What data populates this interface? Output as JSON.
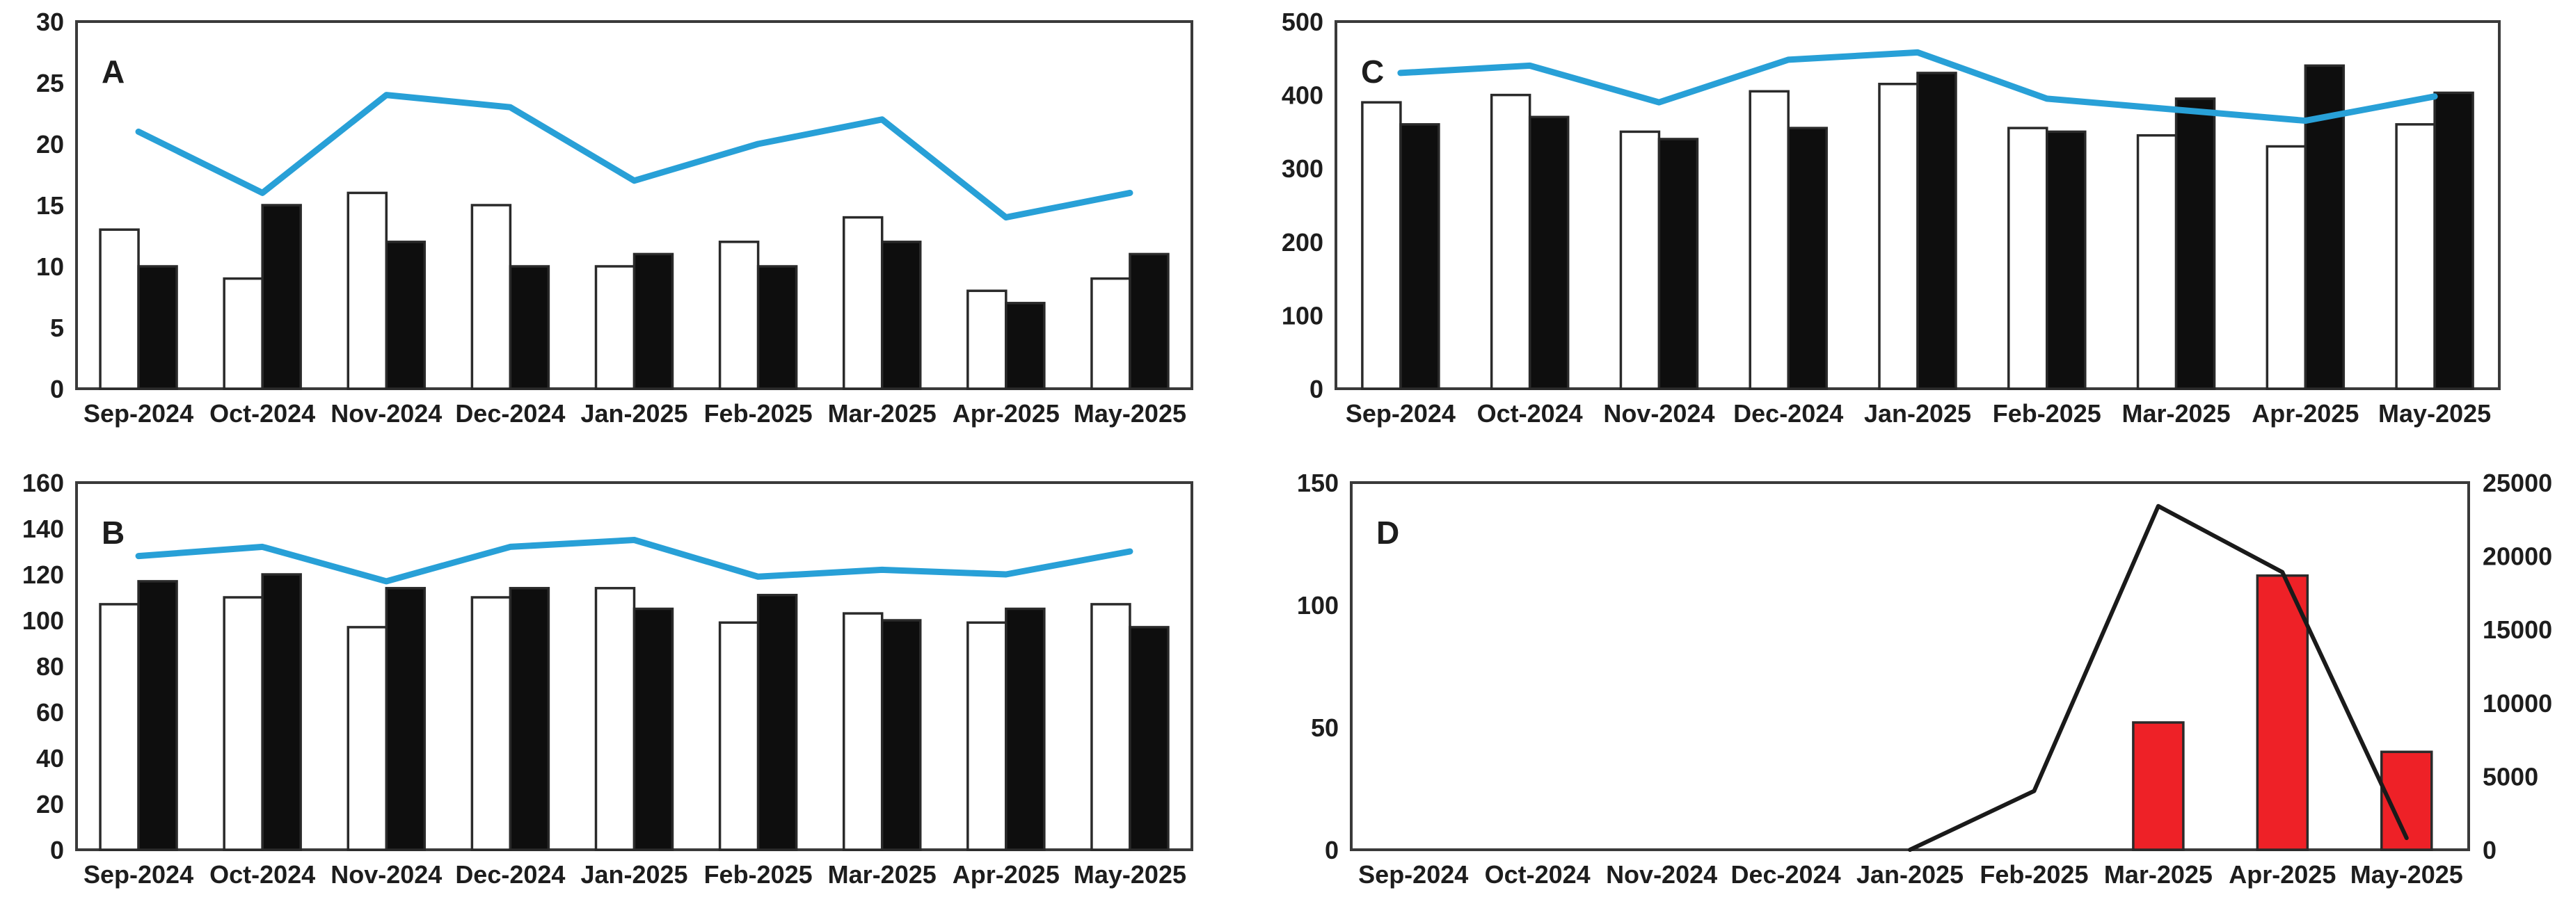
{
  "page": {
    "background": "#ffffff",
    "description": "Four-panel combo chart figure, panels A-D, monthly data Sep-2024 to May-2025"
  },
  "colors": {
    "frame": "#3a3a3a",
    "tick_text": "#1d1d1d",
    "white_bar_fill": "#ffffff",
    "black_bar_fill": "#0e0e0e",
    "bar_outline": "#2a2a2a",
    "blue_line": "#28a0d7",
    "red_bar_fill": "#ee2127",
    "black_line": "#1a1a1a"
  },
  "chart_data": [
    {
      "id": "A",
      "panel_label": "A",
      "type": "bar",
      "subtype": "grouped-bars-with-line-overlay",
      "categories": [
        "Sep-2024",
        "Oct-2024",
        "Nov-2024",
        "Dec-2024",
        "Jan-2025",
        "Feb-2025",
        "Mar-2025",
        "Apr-2025",
        "May-2025"
      ],
      "series": [
        {
          "name": "white-bars",
          "kind": "bar",
          "color": "#ffffff",
          "values": [
            13,
            9,
            16,
            15,
            10,
            12,
            14,
            8,
            9
          ]
        },
        {
          "name": "black-bars",
          "kind": "bar",
          "color": "#0e0e0e",
          "values": [
            10,
            15,
            12,
            10,
            11,
            10,
            12,
            7,
            11
          ]
        },
        {
          "name": "blue-line",
          "kind": "line",
          "color": "#28a0d7",
          "values": [
            21,
            16,
            24,
            23,
            17,
            20,
            22,
            14,
            16
          ]
        }
      ],
      "title": "",
      "xlabel": "",
      "ylabel": "",
      "ylim": [
        0,
        30
      ],
      "yticks": [
        0,
        5,
        10,
        15,
        20,
        25,
        30
      ],
      "grid": false,
      "legend": "none"
    },
    {
      "id": "B",
      "panel_label": "B",
      "type": "bar",
      "subtype": "grouped-bars-with-line-overlay",
      "categories": [
        "Sep-2024",
        "Oct-2024",
        "Nov-2024",
        "Dec-2024",
        "Jan-2025",
        "Feb-2025",
        "Mar-2025",
        "Apr-2025",
        "May-2025"
      ],
      "series": [
        {
          "name": "white-bars",
          "kind": "bar",
          "color": "#ffffff",
          "values": [
            107,
            110,
            97,
            110,
            114,
            99,
            103,
            99,
            107
          ]
        },
        {
          "name": "black-bars",
          "kind": "bar",
          "color": "#0e0e0e",
          "values": [
            117,
            120,
            114,
            114,
            105,
            111,
            100,
            105,
            97
          ]
        },
        {
          "name": "blue-line",
          "kind": "line",
          "color": "#28a0d7",
          "values": [
            128,
            132,
            117,
            132,
            135,
            119,
            122,
            120,
            130
          ]
        }
      ],
      "title": "",
      "xlabel": "",
      "ylabel": "",
      "ylim": [
        0,
        160
      ],
      "yticks": [
        0,
        20,
        40,
        60,
        80,
        100,
        120,
        140,
        160
      ],
      "grid": false,
      "legend": "none"
    },
    {
      "id": "C",
      "panel_label": "C",
      "type": "bar",
      "subtype": "grouped-bars-with-line-overlay",
      "categories": [
        "Sep-2024",
        "Oct-2024",
        "Nov-2024",
        "Dec-2024",
        "Jan-2025",
        "Feb-2025",
        "Mar-2025",
        "Apr-2025",
        "May-2025"
      ],
      "series": [
        {
          "name": "white-bars",
          "kind": "bar",
          "color": "#ffffff",
          "values": [
            390,
            400,
            350,
            405,
            415,
            355,
            345,
            330,
            360
          ]
        },
        {
          "name": "black-bars",
          "kind": "bar",
          "color": "#0e0e0e",
          "values": [
            360,
            370,
            340,
            355,
            430,
            350,
            395,
            440,
            403
          ]
        },
        {
          "name": "blue-line",
          "kind": "line",
          "color": "#28a0d7",
          "values": [
            430,
            440,
            390,
            448,
            458,
            395,
            380,
            365,
            398
          ]
        }
      ],
      "title": "",
      "xlabel": "",
      "ylabel": "",
      "ylim": [
        0,
        500
      ],
      "yticks": [
        0,
        100,
        200,
        300,
        400,
        500
      ],
      "grid": false,
      "legend": "none"
    },
    {
      "id": "D",
      "panel_label": "D",
      "type": "bar",
      "subtype": "bars-left-axis-with-line-on-right-axis",
      "categories": [
        "Sep-2024",
        "Oct-2024",
        "Nov-2024",
        "Dec-2024",
        "Jan-2025",
        "Feb-2025",
        "Mar-2025",
        "Apr-2025",
        "May-2025"
      ],
      "series": [
        {
          "name": "red-bars",
          "kind": "bar",
          "axis": "left",
          "color": "#ee2127",
          "values": [
            null,
            null,
            null,
            null,
            null,
            null,
            52,
            112,
            40
          ]
        },
        {
          "name": "black-line",
          "kind": "line",
          "axis": "right",
          "color": "#1a1a1a",
          "values": [
            null,
            null,
            null,
            null,
            0,
            4000,
            23400,
            18900,
            800
          ]
        }
      ],
      "title": "",
      "xlabel": "",
      "ylabel": "",
      "ylim": [
        0,
        150
      ],
      "yticks": [
        0,
        50,
        100,
        150
      ],
      "ylim_right": [
        0,
        25000
      ],
      "yticks_right": [
        0,
        5000,
        10000,
        15000,
        20000,
        25000
      ],
      "grid": false,
      "legend": "none"
    }
  ]
}
